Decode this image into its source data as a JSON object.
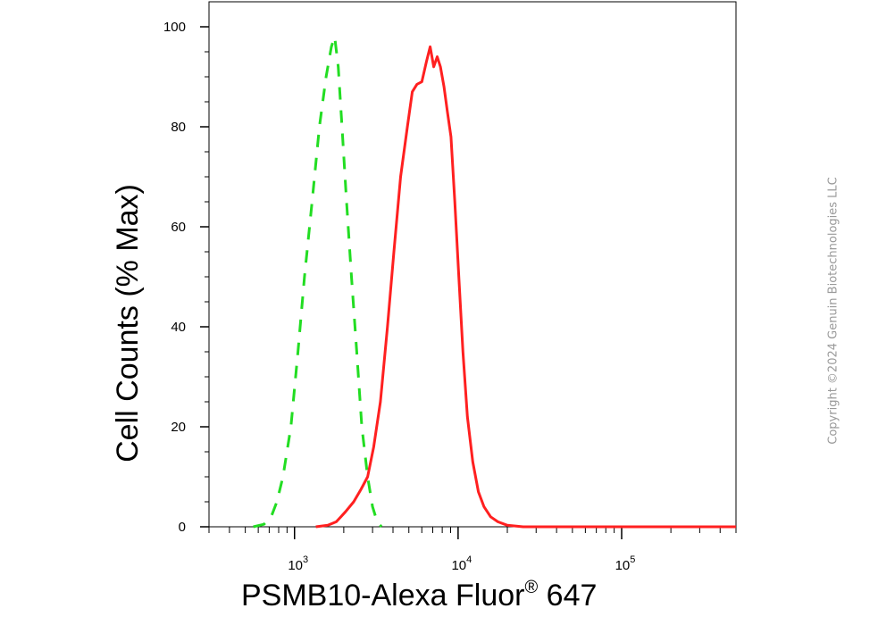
{
  "chart_data": {
    "type": "line",
    "xscale": "log",
    "xlim": [
      300,
      500000
    ],
    "ylim": [
      0,
      100
    ],
    "ylabel": "Cell Counts (% Max)",
    "xlabel_parts": {
      "main": "PSMB10-Alexa Fluor",
      "sup": "®",
      "after": " 647"
    },
    "y_ticks": [
      0,
      20,
      40,
      60,
      80,
      100
    ],
    "y_tick_labels": [
      "0",
      "20",
      "40",
      "60",
      "80",
      "100"
    ],
    "x_major_ticks": [
      {
        "value": 1000,
        "base": "10",
        "exp": "3"
      },
      {
        "value": 10000,
        "base": "10",
        "exp": "4"
      },
      {
        "value": 100000,
        "base": "10",
        "exp": "5"
      }
    ],
    "series": [
      {
        "color": "#22dd22",
        "style": "dashed",
        "points": [
          [
            560,
            0
          ],
          [
            650,
            0.5
          ],
          [
            720,
            2
          ],
          [
            780,
            5
          ],
          [
            850,
            10
          ],
          [
            950,
            20
          ],
          [
            1050,
            35
          ],
          [
            1150,
            50
          ],
          [
            1280,
            65
          ],
          [
            1420,
            80
          ],
          [
            1560,
            90
          ],
          [
            1680,
            96
          ],
          [
            1760,
            98
          ],
          [
            1850,
            92
          ],
          [
            1950,
            80
          ],
          [
            2080,
            65
          ],
          [
            2230,
            50
          ],
          [
            2400,
            35
          ],
          [
            2580,
            20
          ],
          [
            2800,
            10
          ],
          [
            3000,
            4
          ],
          [
            3200,
            1
          ],
          [
            3400,
            0
          ]
        ]
      },
      {
        "color": "#ff2020",
        "style": "solid",
        "points": [
          [
            1350,
            0
          ],
          [
            1600,
            0.3
          ],
          [
            1800,
            1
          ],
          [
            2050,
            3
          ],
          [
            2300,
            5
          ],
          [
            2550,
            7.5
          ],
          [
            2800,
            10
          ],
          [
            3050,
            16
          ],
          [
            3350,
            25
          ],
          [
            3700,
            40
          ],
          [
            4050,
            55
          ],
          [
            4450,
            70
          ],
          [
            4900,
            80
          ],
          [
            5250,
            87
          ],
          [
            5600,
            88.5
          ],
          [
            6000,
            89
          ],
          [
            6400,
            93
          ],
          [
            6750,
            96
          ],
          [
            7100,
            92
          ],
          [
            7450,
            94
          ],
          [
            7800,
            92
          ],
          [
            8200,
            88
          ],
          [
            8600,
            83
          ],
          [
            9050,
            78
          ],
          [
            9550,
            65
          ],
          [
            10100,
            50
          ],
          [
            10700,
            35
          ],
          [
            11400,
            22
          ],
          [
            12300,
            13
          ],
          [
            13300,
            7
          ],
          [
            14400,
            4
          ],
          [
            15800,
            2
          ],
          [
            17500,
            1
          ],
          [
            20000,
            0.3
          ],
          [
            25000,
            0
          ],
          [
            500000,
            0
          ]
        ]
      }
    ]
  },
  "copyright": "Copyright ©2024 Genuin Biotechnologies LLC"
}
